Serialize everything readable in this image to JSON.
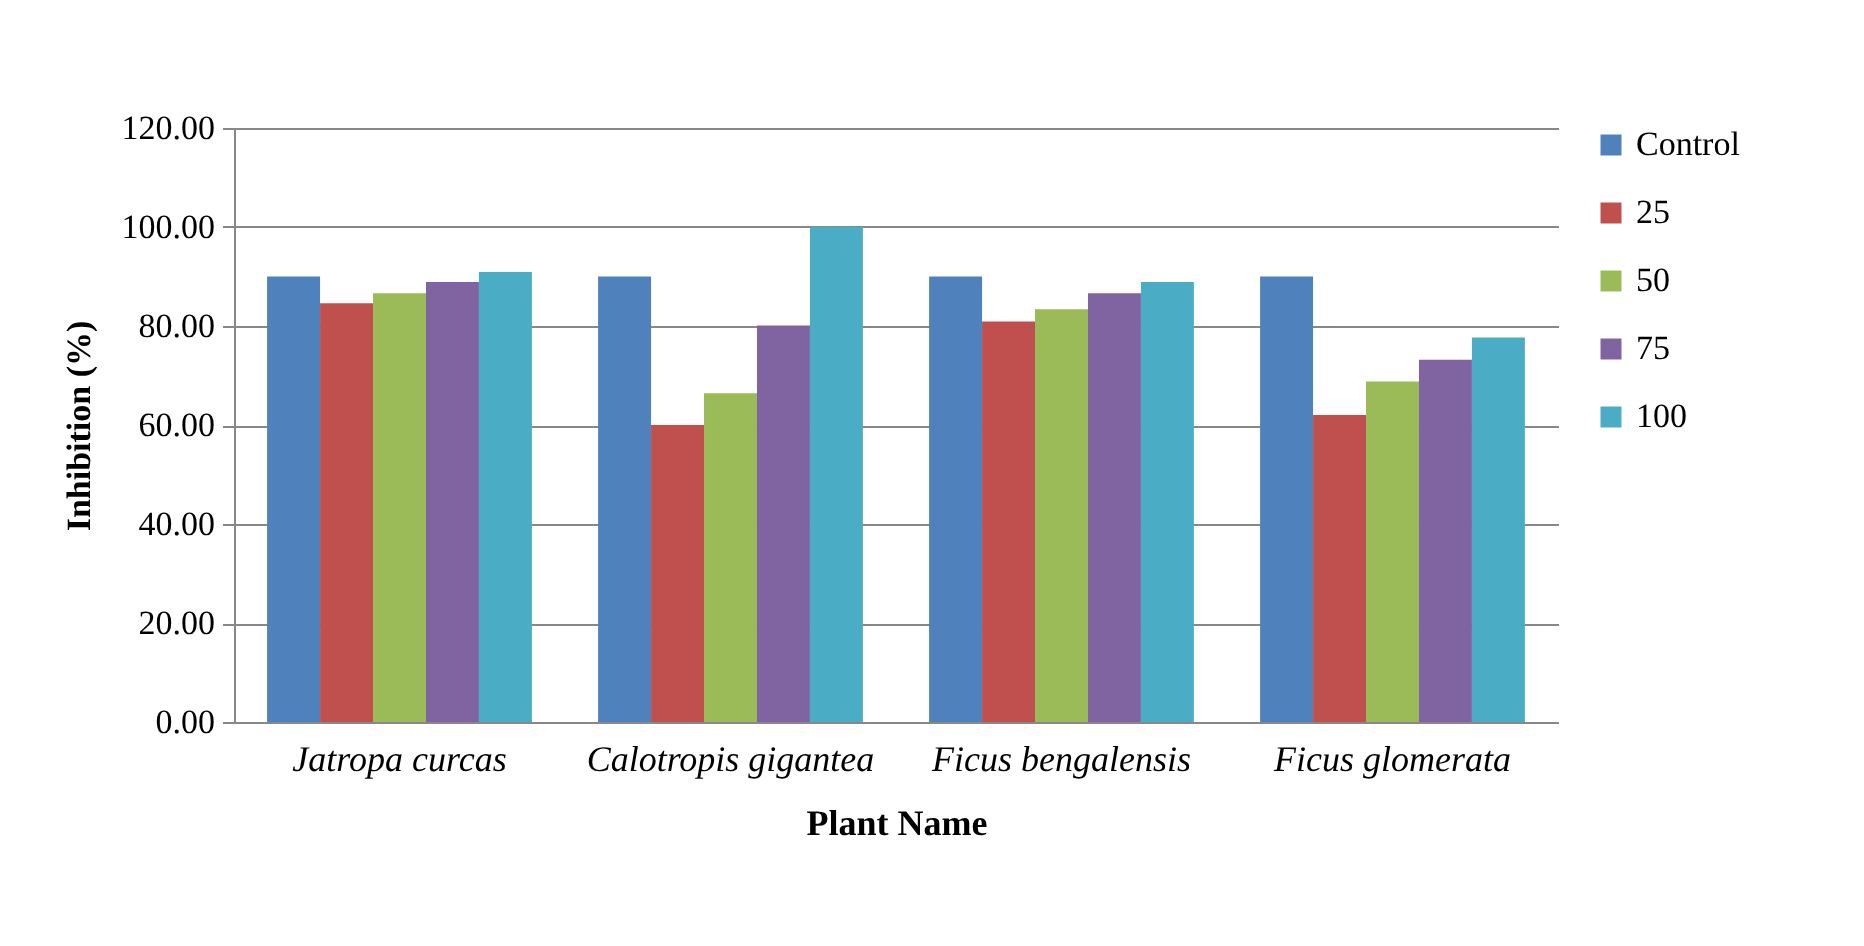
{
  "chart_data": {
    "type": "bar",
    "xlabel": "Plant Name",
    "ylabel": "Inhibition  (%)",
    "categories": [
      "Jatropa curcas",
      "Calotropis gigantea",
      "Ficus bengalensis",
      "Ficus glomerata"
    ],
    "series": [
      {
        "name": "Control",
        "color": "#4f81bd",
        "values": [
          90,
          90,
          90,
          90
        ]
      },
      {
        "name": "25",
        "color": "#c0504d",
        "values": [
          84.6,
          60,
          80.9,
          62
        ]
      },
      {
        "name": "50",
        "color": "#9bbb59",
        "values": [
          86.6,
          66.4,
          83.4,
          68.8
        ]
      },
      {
        "name": "75",
        "color": "#8064a2",
        "values": [
          88.9,
          80.1,
          86.6,
          73.2
        ]
      },
      {
        "name": "100",
        "color": "#4bacc6",
        "values": [
          90.9,
          100,
          88.9,
          77.7
        ]
      }
    ],
    "ylim": [
      0,
      120
    ],
    "yticks": [
      {
        "value": 0,
        "label": "0.00"
      },
      {
        "value": 20,
        "label": "20.00"
      },
      {
        "value": 40,
        "label": "40.00"
      },
      {
        "value": 60,
        "label": "60.00"
      },
      {
        "value": 80,
        "label": "80.00"
      },
      {
        "value": 100,
        "label": "100.00"
      },
      {
        "value": 120,
        "label": "120.00"
      }
    ],
    "grid": "y",
    "legend": "right"
  }
}
